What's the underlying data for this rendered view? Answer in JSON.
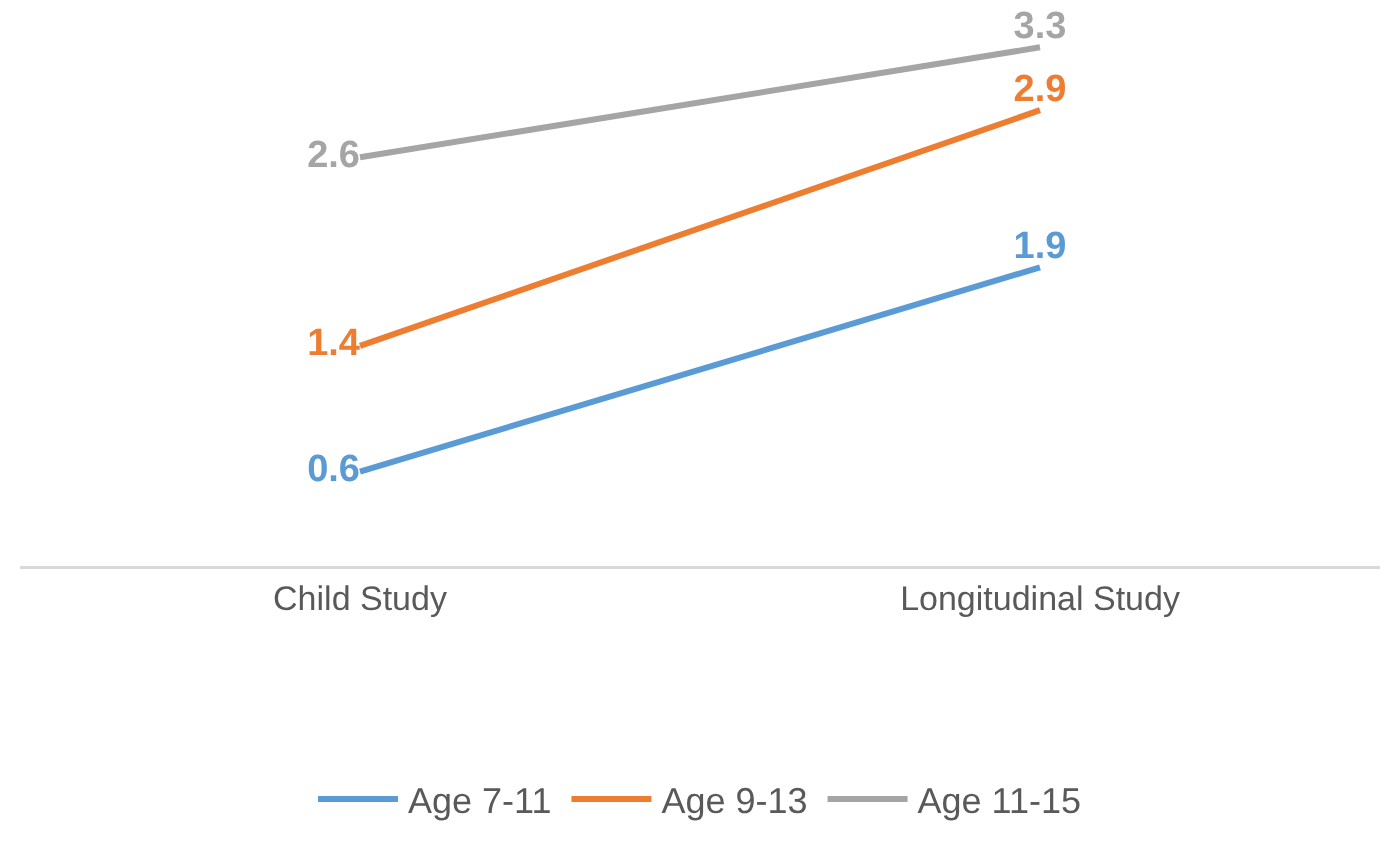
{
  "chart_data": {
    "type": "line",
    "categories": [
      "Child Study",
      "Longitudinal Study"
    ],
    "series": [
      {
        "name": "Age 7-11",
        "color": "#5b9bd5",
        "values": [
          0.6,
          1.9
        ]
      },
      {
        "name": "Age 9-13",
        "color": "#ed7d31",
        "values": [
          1.4,
          2.9
        ]
      },
      {
        "name": "Age 11-15",
        "color": "#a5a5a5",
        "values": [
          2.6,
          3.3
        ]
      }
    ],
    "tick_labels": "x",
    "data_labels": true,
    "grid": false,
    "legend": "bottom",
    "marker": "none",
    "line_style": "solid"
  }
}
